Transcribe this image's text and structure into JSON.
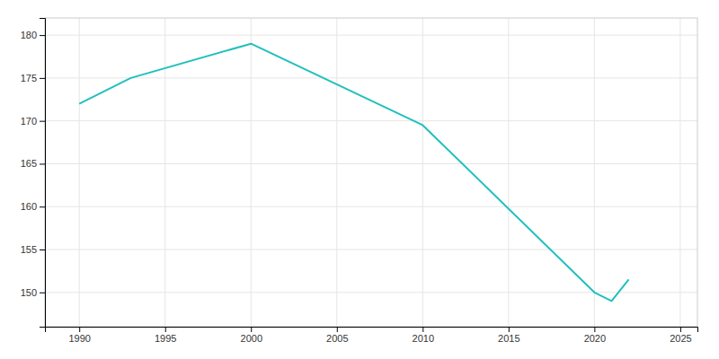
{
  "chart_data": {
    "type": "line",
    "x": [
      1990,
      1993,
      2000,
      2010,
      2020,
      2021,
      2022
    ],
    "values": [
      172,
      175,
      179,
      169.5,
      150,
      149,
      151.5
    ],
    "color": "#20BFBF",
    "xlim": [
      1988,
      2026
    ],
    "ylim": [
      146,
      182
    ],
    "xticks": [
      1990,
      1995,
      2000,
      2005,
      2010,
      2015,
      2020,
      2025
    ],
    "yticks": [
      150,
      155,
      160,
      165,
      170,
      175,
      180
    ],
    "grid": true
  }
}
